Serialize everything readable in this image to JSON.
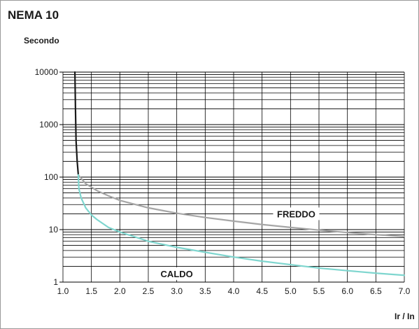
{
  "chart_data": {
    "type": "line",
    "title": "NEMA 10",
    "ylabel": "Secondo",
    "xlabel": "Ir / In",
    "x_ticks": [
      "1.0",
      "1.5",
      "2.0",
      "2.5",
      "3.0",
      "3.5",
      "4.0",
      "4.5",
      "5.0",
      "5.5",
      "6.0",
      "6.5",
      "7.0"
    ],
    "y_ticks": [
      "1",
      "10",
      "100",
      "1000",
      "10000"
    ],
    "xlim": [
      1.0,
      7.0
    ],
    "ylim": [
      1,
      10000
    ],
    "y_scale": "log",
    "grid": true,
    "colors": {
      "common": "#1a1a1a",
      "freddo": "#a6a6a6",
      "caldo": "#7fd6cf",
      "grid": "#000000"
    },
    "series": [
      {
        "key": "common",
        "points": [
          [
            1.21,
            10000
          ],
          [
            1.22,
            2000
          ],
          [
            1.23,
            500
          ],
          [
            1.25,
            200
          ],
          [
            1.27,
            110
          ]
        ]
      },
      {
        "key": "freddo",
        "name": "FREDDO",
        "points": [
          [
            1.27,
            110
          ],
          [
            1.4,
            75
          ],
          [
            1.6,
            55
          ],
          [
            1.8,
            44
          ],
          [
            2.0,
            36
          ],
          [
            2.5,
            26
          ],
          [
            3.0,
            20.5
          ],
          [
            3.5,
            17
          ],
          [
            4.0,
            14.5
          ],
          [
            4.5,
            12.5
          ],
          [
            5.0,
            11
          ],
          [
            5.5,
            9.8
          ],
          [
            6.0,
            8.8
          ],
          [
            6.5,
            8
          ],
          [
            7.0,
            7.4
          ]
        ]
      },
      {
        "key": "caldo",
        "name": "CALDO",
        "points": [
          [
            1.27,
            110
          ],
          [
            1.28,
            60
          ],
          [
            1.32,
            40
          ],
          [
            1.4,
            26
          ],
          [
            1.5,
            19
          ],
          [
            1.6,
            15.5
          ],
          [
            1.8,
            11
          ],
          [
            2.0,
            9
          ],
          [
            2.5,
            6
          ],
          [
            3.0,
            4.6
          ],
          [
            3.5,
            3.7
          ],
          [
            4.0,
            3
          ],
          [
            4.5,
            2.5
          ],
          [
            5.0,
            2.15
          ],
          [
            5.5,
            1.85
          ],
          [
            6.0,
            1.65
          ],
          [
            6.5,
            1.48
          ],
          [
            7.0,
            1.35
          ]
        ]
      }
    ],
    "annotations": [
      {
        "text": "FREDDO",
        "x": 5.1,
        "y": 20
      },
      {
        "text": "CALDO",
        "x": 3.0,
        "y": 1.45
      }
    ]
  }
}
